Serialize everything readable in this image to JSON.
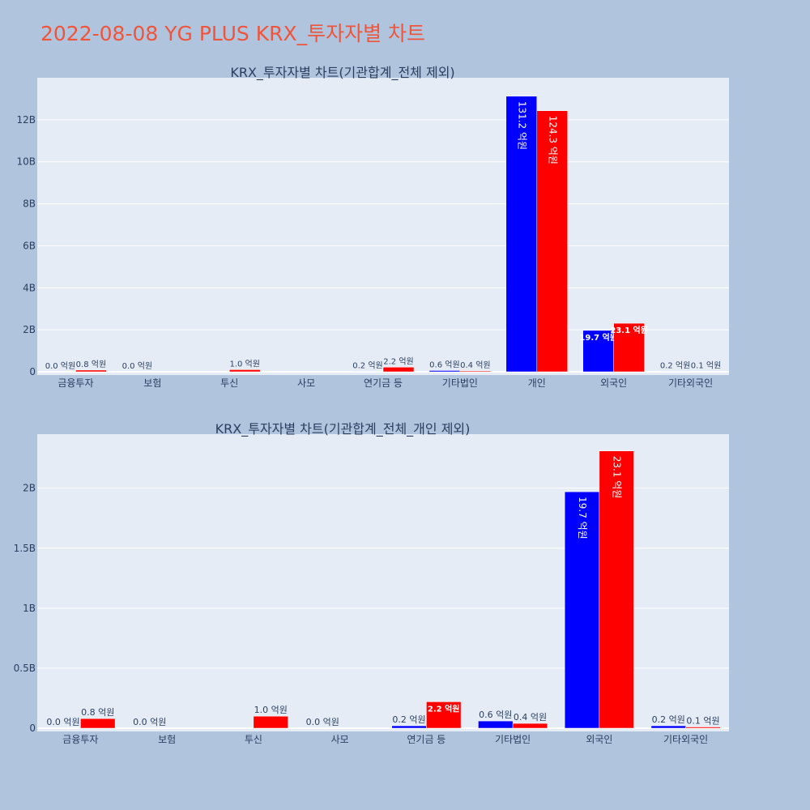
{
  "page_title": "2022-08-08 YG PLUS KRX_투자자별 차트",
  "colors": {
    "buy": "#0000ff",
    "sell": "#ff0000",
    "page_bg": "#b0c4de",
    "plot_bg": "#e5ecf6",
    "title": "#ef553b"
  },
  "chart_data": [
    {
      "type": "bar",
      "title": "KRX_투자자별 차트(기관합계_전체 제외)",
      "categories": [
        "금융투자",
        "보험",
        "투신",
        "사모",
        "연기금 등",
        "기타법인",
        "개인",
        "외국인",
        "기타외국인"
      ],
      "series": [
        {
          "color": "#0000ff",
          "values": [
            0.0,
            0.0,
            null,
            null,
            0.02,
            0.06,
            13.12,
            1.97,
            0.02
          ],
          "labels": [
            "0.0 억원",
            "0.0 억원",
            "",
            "",
            "0.2 억원",
            "0.6 억원",
            "131.2 억원",
            "19.7 억원",
            "0.2 억원"
          ]
        },
        {
          "color": "#ff0000",
          "values": [
            0.08,
            null,
            0.1,
            null,
            0.22,
            0.04,
            12.43,
            2.31,
            0.01
          ],
          "labels": [
            "0.8 억원",
            "",
            "1.0 억원",
            "",
            "2.2 억원",
            "0.4 억원",
            "124.3 억원",
            "23.1 억원",
            "0.1 억원"
          ]
        }
      ],
      "yunit": "B",
      "ylim": [
        0,
        14
      ],
      "yticks": [
        0,
        2,
        4,
        6,
        8,
        10,
        12
      ],
      "ytick_labels": [
        "0",
        "2B",
        "4B",
        "6B",
        "8B",
        "10B",
        "12B"
      ],
      "grid": true
    },
    {
      "type": "bar",
      "title": "KRX_투자자별 차트(기관합계_전체_개인 제외)",
      "categories": [
        "금융투자",
        "보험",
        "투신",
        "사모",
        "연기금 등",
        "기타법인",
        "외국인",
        "기타외국인"
      ],
      "series": [
        {
          "color": "#0000ff",
          "values": [
            0.0,
            0.0,
            null,
            0.0,
            0.02,
            0.06,
            1.97,
            0.02
          ],
          "labels": [
            "0.0 억원",
            "0.0 억원",
            "",
            "0.0 억원",
            "0.2 억원",
            "0.6 억원",
            "19.7 억원",
            "0.2 억원"
          ]
        },
        {
          "color": "#ff0000",
          "values": [
            0.08,
            null,
            0.1,
            null,
            0.22,
            0.04,
            2.31,
            0.01
          ],
          "labels": [
            "0.8 억원",
            "",
            "1.0 억원",
            "",
            "2.2 억원",
            "0.4 억원",
            "23.1 억원",
            "0.1 억원"
          ]
        }
      ],
      "yunit": "B",
      "ylim": [
        0,
        2.45
      ],
      "yticks": [
        0,
        0.5,
        1,
        1.5,
        2
      ],
      "ytick_labels": [
        "0",
        "0.5B",
        "1B",
        "1.5B",
        "2B"
      ],
      "grid": true
    }
  ]
}
